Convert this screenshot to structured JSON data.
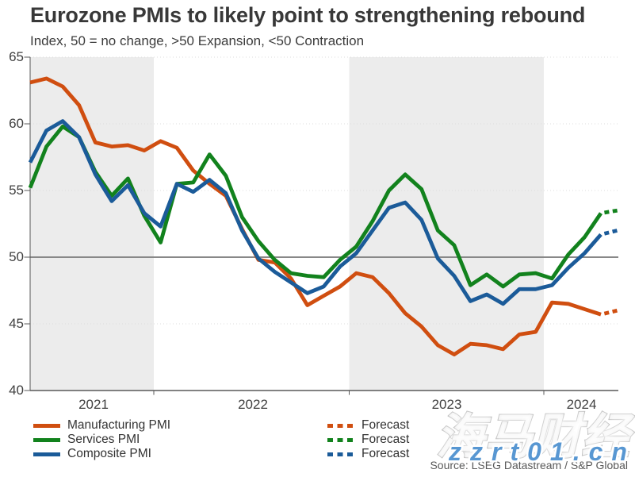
{
  "title": "Eurozone PMIs to likely point to strengthening rebound",
  "subtitle": "Index, 50 = no change, >50 Expansion, <50 Contraction",
  "source_note": "Source: LSEG Datastream / S&P Global",
  "watermark": {
    "cjk": "海马财经",
    "site": "zzrt01.cn"
  },
  "colors": {
    "manufacturing": "#d04e10",
    "services": "#12821d",
    "composite": "#1b5b99",
    "reference_line": "#888888",
    "band": "#ececec",
    "axis": "#595959",
    "grid": "#dcdcdc",
    "tick_text": "#404040"
  },
  "legend": {
    "items": [
      {
        "label": "Manufacturing PMI",
        "color_key": "manufacturing"
      },
      {
        "label": "Services PMI",
        "color_key": "services"
      },
      {
        "label": "Composite PMI",
        "color_key": "composite"
      }
    ],
    "forecast_label": "Forecast"
  },
  "chart_data": {
    "type": "line",
    "title": "Eurozone PMIs to likely point to strengthening rebound",
    "subtitle": "Index, 50 = no change, >50 Expansion, <50 Contraction",
    "x_monthly_start": "2021-05",
    "x_tick_labels": [
      "2021",
      "2022",
      "2023",
      "2024"
    ],
    "ylim": [
      40,
      65
    ],
    "yticks": [
      40,
      45,
      50,
      55,
      60,
      65
    ],
    "reference_line": 50,
    "grid": "dotted-horizontal",
    "legend_position": "bottom",
    "series": [
      {
        "name": "Manufacturing PMI",
        "color_key": "manufacturing",
        "values": [
          63.1,
          63.4,
          62.8,
          61.4,
          58.6,
          58.3,
          58.4,
          58.0,
          58.7,
          58.2,
          56.5,
          55.5,
          54.6,
          52.1,
          49.8,
          49.6,
          48.4,
          46.4,
          47.1,
          47.8,
          48.8,
          48.5,
          47.3,
          45.8,
          44.8,
          43.4,
          42.7,
          43.5,
          43.4,
          43.1,
          44.2,
          44.4,
          46.6,
          46.5,
          46.1,
          45.7
        ],
        "forecast_value": 46.0
      },
      {
        "name": "Services PMI",
        "color_key": "services",
        "values": [
          55.2,
          58.3,
          59.8,
          59.0,
          56.4,
          54.6,
          55.9,
          53.1,
          51.1,
          55.5,
          55.6,
          57.7,
          56.1,
          53.0,
          51.2,
          49.8,
          48.8,
          48.6,
          48.5,
          49.8,
          50.8,
          52.7,
          55.0,
          56.2,
          55.1,
          52.0,
          50.9,
          47.9,
          48.7,
          47.8,
          48.7,
          48.8,
          48.4,
          50.2,
          51.5,
          53.3
        ],
        "forecast_value": 53.5
      },
      {
        "name": "Composite PMI",
        "color_key": "composite",
        "values": [
          57.1,
          59.5,
          60.2,
          59.0,
          56.2,
          54.2,
          55.4,
          53.3,
          52.3,
          55.5,
          54.9,
          55.8,
          54.8,
          52.0,
          49.9,
          48.9,
          48.1,
          47.3,
          47.8,
          49.3,
          50.3,
          52.0,
          53.7,
          54.1,
          52.8,
          49.9,
          48.6,
          46.7,
          47.2,
          46.5,
          47.6,
          47.6,
          47.9,
          49.2,
          50.3,
          51.7
        ],
        "forecast_value": 52.0
      }
    ]
  }
}
